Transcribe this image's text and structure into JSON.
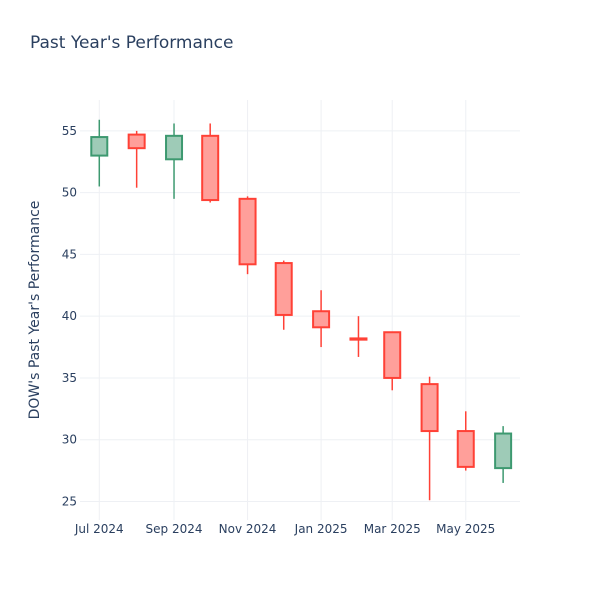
{
  "chart_data": {
    "type": "candlestick",
    "title": "Past Year's Performance",
    "xlabel": "",
    "ylabel": "DOW's Past Year's Performance",
    "ylim": [
      23.5,
      57.5
    ],
    "yticks": [
      25,
      30,
      35,
      40,
      45,
      50,
      55
    ],
    "xlim": [
      "2024-06-15",
      "2025-06-15"
    ],
    "xticks": [
      {
        "date": "2024-07-01",
        "label": "Jul 2024"
      },
      {
        "date": "2024-09-01",
        "label": "Sep 2024"
      },
      {
        "date": "2024-11-01",
        "label": "Nov 2024"
      },
      {
        "date": "2025-01-01",
        "label": "Jan 2025"
      },
      {
        "date": "2025-03-01",
        "label": "Mar 2025"
      },
      {
        "date": "2025-05-01",
        "label": "May 2025"
      }
    ],
    "grid": true,
    "legend": "none",
    "colors": {
      "increasing": "#3d9970",
      "increasing_fill": "#9ecbb7",
      "decreasing": "#ff4136",
      "decreasing_fill": "#ff9f9a",
      "grid": "#eef0f4"
    },
    "candles": [
      {
        "date": "2024-07-01",
        "open": 53.0,
        "high": 55.9,
        "low": 50.5,
        "close": 54.5
      },
      {
        "date": "2024-08-01",
        "open": 54.7,
        "high": 55.0,
        "low": 50.4,
        "close": 53.6
      },
      {
        "date": "2024-09-01",
        "open": 52.7,
        "high": 55.6,
        "low": 49.5,
        "close": 54.6
      },
      {
        "date": "2024-10-01",
        "open": 54.6,
        "high": 55.6,
        "low": 49.2,
        "close": 49.4
      },
      {
        "date": "2024-11-01",
        "open": 49.5,
        "high": 49.7,
        "low": 43.4,
        "close": 44.2
      },
      {
        "date": "2024-12-01",
        "open": 44.3,
        "high": 44.5,
        "low": 38.9,
        "close": 40.1
      },
      {
        "date": "2025-01-01",
        "open": 40.4,
        "high": 42.1,
        "low": 37.5,
        "close": 39.1
      },
      {
        "date": "2025-02-01",
        "open": 38.2,
        "high": 40.0,
        "low": 36.7,
        "close": 38.1
      },
      {
        "date": "2025-03-01",
        "open": 38.7,
        "high": 38.7,
        "low": 34.0,
        "close": 35.0
      },
      {
        "date": "2025-04-01",
        "open": 34.5,
        "high": 35.1,
        "low": 25.1,
        "close": 30.7
      },
      {
        "date": "2025-05-01",
        "open": 30.7,
        "high": 32.3,
        "low": 27.5,
        "close": 27.8
      },
      {
        "date": "2025-06-01",
        "open": 27.7,
        "high": 31.1,
        "low": 26.5,
        "close": 30.5
      }
    ]
  }
}
